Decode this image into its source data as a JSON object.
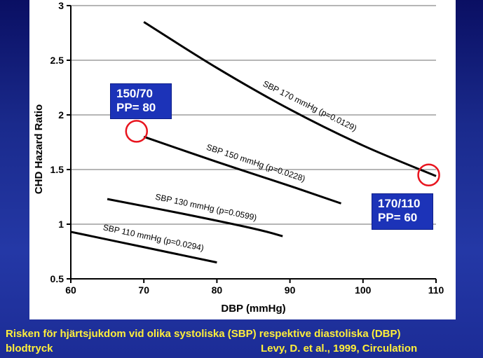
{
  "chart_data": {
    "type": "line",
    "title": "",
    "xlabel": "DBP (mmHg)",
    "ylabel": "CHD Hazard Ratio",
    "xlim": [
      60,
      110
    ],
    "ylim": [
      0.5,
      3
    ],
    "x_ticks": [
      "60",
      "70",
      "80",
      "90",
      "100",
      "110"
    ],
    "y_ticks": [
      "0.5",
      "1",
      "1.5",
      "2",
      "2.5",
      "3"
    ],
    "grid": "horizontal",
    "legend": "none",
    "series": [
      {
        "name": "SBP 170 mmHg (p=0.0129)",
        "x": [
          70,
          80,
          90,
          100,
          110
        ],
        "y": [
          2.85,
          2.43,
          2.05,
          1.72,
          1.44
        ]
      },
      {
        "name": "SBP 150 mmHg (p=0.0228)",
        "x": [
          70,
          80,
          90,
          97
        ],
        "y": [
          1.8,
          1.57,
          1.35,
          1.19
        ]
      },
      {
        "name": "SBP 130 mmHg (p=0.0599)",
        "x": [
          65,
          75,
          85,
          89
        ],
        "y": [
          1.23,
          1.1,
          0.96,
          0.89
        ]
      },
      {
        "name": "SBP 110 mmHg (p=0.0294)",
        "x": [
          60,
          70,
          80
        ],
        "y": [
          0.93,
          0.79,
          0.65
        ]
      }
    ],
    "highlights": [
      {
        "x": 69,
        "y": 1.85
      },
      {
        "x": 109,
        "y": 1.45
      }
    ],
    "annotations": [
      {
        "line1": "150/70",
        "line2": "PP= 80"
      },
      {
        "line1": "170/110",
        "line2": "PP= 60"
      }
    ]
  },
  "caption": {
    "line1": "Risken för hjärtsjukdom vid olika systoliska (SBP) respektive diastoliska (DBP)",
    "line2": "blodtryck",
    "citation": "Levy, D. et al., 1999,  Circulation"
  },
  "colors": {
    "line": "#000000",
    "highlight_circle": "#e8141e",
    "callout_bg": "#1c33b8",
    "caption_text": "#ffef3a"
  }
}
